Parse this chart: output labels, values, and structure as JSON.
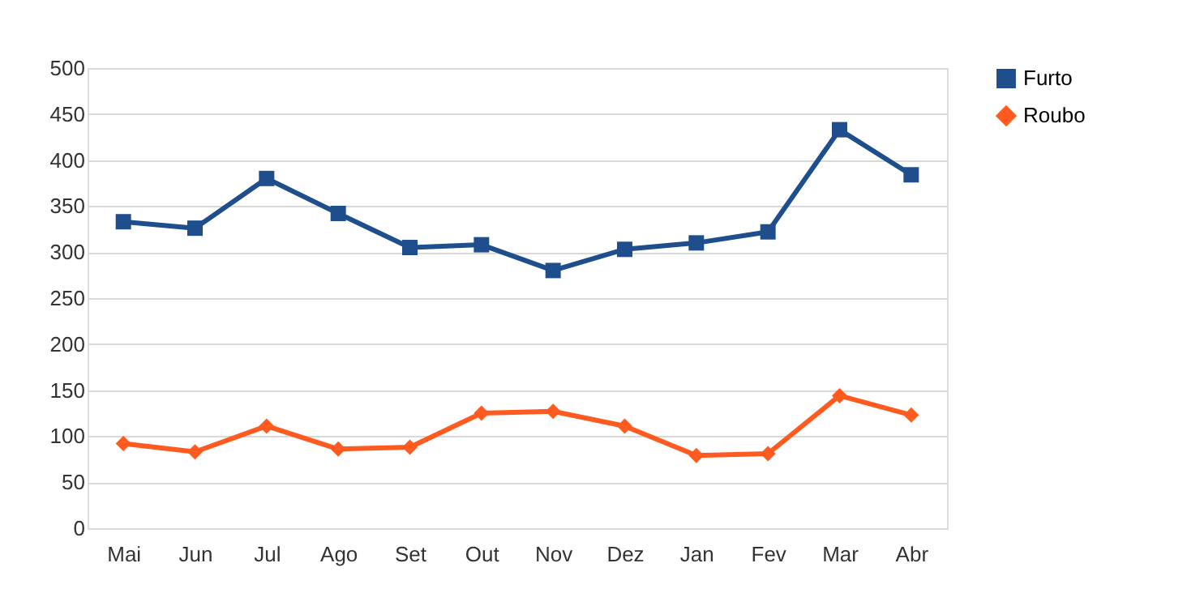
{
  "chart_data": {
    "type": "line",
    "categories": [
      "Mai",
      "Jun",
      "Jul",
      "Ago",
      "Set",
      "Out",
      "Nov",
      "Dez",
      "Jan",
      "Fev",
      "Mar",
      "Abr"
    ],
    "series": [
      {
        "name": "Furto",
        "color": "#1f4e8c",
        "marker": "square",
        "values": [
          333,
          326,
          380,
          342,
          305,
          308,
          280,
          303,
          310,
          322,
          433,
          384
        ]
      },
      {
        "name": "Roubo",
        "color": "#ff5a1f",
        "marker": "diamond",
        "values": [
          92,
          83,
          111,
          86,
          88,
          125,
          127,
          111,
          79,
          81,
          144,
          123
        ]
      }
    ],
    "ylim": [
      0,
      500
    ],
    "yticks": [
      0,
      50,
      100,
      150,
      200,
      250,
      300,
      350,
      400,
      450,
      500
    ],
    "grid": "y",
    "legend": "right",
    "line_style": "solid"
  }
}
